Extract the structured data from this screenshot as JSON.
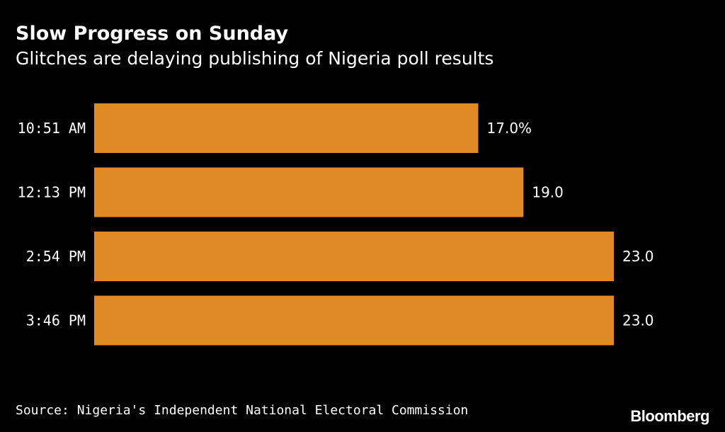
{
  "header": {
    "title": "Slow Progress on Sunday",
    "subtitle": "Glitches are delaying publishing of Nigeria poll results"
  },
  "footer": {
    "source": "Source: Nigeria's Independent National Electoral Commission",
    "brand": "Bloomberg"
  },
  "colors": {
    "background": "#000000",
    "bar": "#E08A26",
    "text": "#FFFFFF"
  },
  "chart_data": {
    "type": "bar",
    "orientation": "horizontal",
    "title": "Slow Progress on Sunday",
    "subtitle": "Glitches are delaying publishing of Nigeria poll results",
    "categories": [
      "10:51 AM",
      "12:13 PM",
      "2:54 PM",
      "3:46 PM"
    ],
    "values": [
      17.0,
      19.0,
      23.0,
      23.0
    ],
    "value_labels": [
      "17.0%",
      "19.0",
      "23.0",
      "23.0"
    ],
    "unit": "%",
    "xlabel": "",
    "ylabel": "",
    "xlim": [
      0,
      23
    ],
    "grid": false,
    "legend": "none"
  }
}
